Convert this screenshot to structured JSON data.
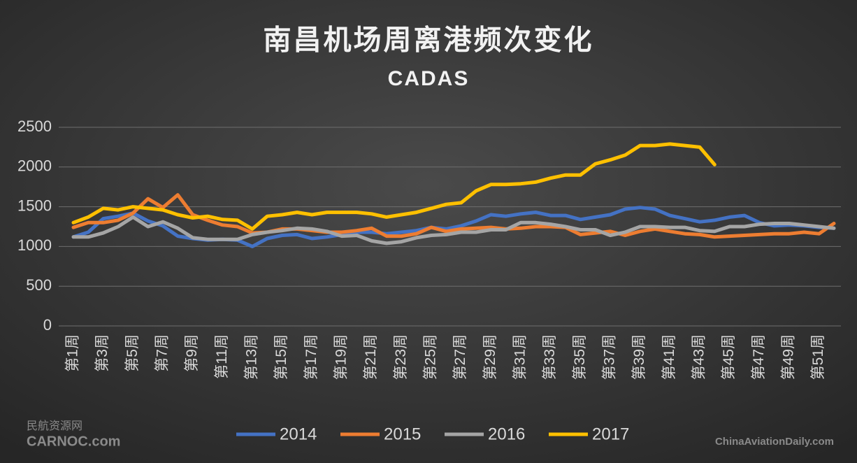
{
  "chart_data": {
    "type": "line",
    "title": "南昌机场周离港频次变化",
    "subtitle": "CADAS",
    "categories": [
      "第1周",
      null,
      "第3周",
      null,
      "第5周",
      null,
      "第7周",
      null,
      "第9周",
      null,
      "第11周",
      null,
      "第13周",
      null,
      "第15周",
      null,
      "第17周",
      null,
      "第19周",
      null,
      "第21周",
      null,
      "第23周",
      null,
      "第25周",
      null,
      "第27周",
      null,
      "第29周",
      null,
      "第31周",
      null,
      "第33周",
      null,
      "第35周",
      null,
      "第37周",
      null,
      "第39周",
      null,
      "第41周",
      null,
      "第43周",
      null,
      "第45周",
      null,
      "第47周",
      null,
      "第49周",
      null,
      "第51周",
      null
    ],
    "series": [
      {
        "name": "2014",
        "color": "#4472c4",
        "values": [
          1120,
          1180,
          1350,
          1380,
          1420,
          1320,
          1260,
          1130,
          1100,
          1080,
          1090,
          1080,
          1000,
          1100,
          1140,
          1150,
          1100,
          1120,
          1150,
          1180,
          1180,
          1160,
          1180,
          1200,
          1240,
          1220,
          1260,
          1320,
          1400,
          1380,
          1410,
          1430,
          1390,
          1390,
          1340,
          1370,
          1400,
          1470,
          1490,
          1470,
          1390,
          1350,
          1310,
          1330,
          1370,
          1390,
          1300,
          1260,
          1270,
          1260,
          1240,
          1230
        ]
      },
      {
        "name": "2015",
        "color": "#ed7d31",
        "values": [
          1240,
          1300,
          1300,
          1330,
          1420,
          1600,
          1490,
          1650,
          1400,
          1330,
          1270,
          1250,
          1170,
          1180,
          1220,
          1220,
          1200,
          1180,
          1180,
          1200,
          1230,
          1130,
          1130,
          1160,
          1240,
          1190,
          1220,
          1230,
          1240,
          1220,
          1230,
          1250,
          1250,
          1240,
          1150,
          1170,
          1190,
          1140,
          1190,
          1220,
          1190,
          1160,
          1150,
          1120,
          1130,
          1140,
          1150,
          1160,
          1160,
          1180,
          1160,
          1290
        ]
      },
      {
        "name": "2016",
        "color": "#a5a5a5",
        "values": [
          1120,
          1120,
          1170,
          1250,
          1370,
          1250,
          1310,
          1230,
          1110,
          1090,
          1090,
          1090,
          1150,
          1180,
          1200,
          1230,
          1220,
          1190,
          1130,
          1140,
          1070,
          1040,
          1060,
          1110,
          1140,
          1150,
          1180,
          1180,
          1210,
          1210,
          1300,
          1300,
          1280,
          1250,
          1210,
          1210,
          1140,
          1180,
          1250,
          1250,
          1240,
          1240,
          1200,
          1190,
          1250,
          1250,
          1280,
          1290,
          1290,
          1270,
          1250,
          1230
        ]
      },
      {
        "name": "2017",
        "color": "#ffc000",
        "values": [
          1300,
          1370,
          1480,
          1460,
          1500,
          1480,
          1460,
          1400,
          1360,
          1380,
          1340,
          1330,
          1220,
          1380,
          1400,
          1430,
          1400,
          1430,
          1430,
          1430,
          1410,
          1370,
          1400,
          1430,
          1480,
          1530,
          1550,
          1700,
          1780,
          1780,
          1790,
          1810,
          1860,
          1900,
          1900,
          2040,
          2090,
          2150,
          2270,
          2270,
          2290,
          2270,
          2250,
          2030,
          null,
          null,
          null,
          null,
          null,
          null,
          null,
          null
        ]
      }
    ],
    "ylim": [
      0,
      2500
    ],
    "yticks": [
      0,
      500,
      1000,
      1500,
      2000,
      2500
    ],
    "grid": true,
    "legend": "bottom",
    "watermarks": [
      "民航资源网",
      "CARNOC.com",
      "ChinaAviationDaily.com"
    ]
  }
}
